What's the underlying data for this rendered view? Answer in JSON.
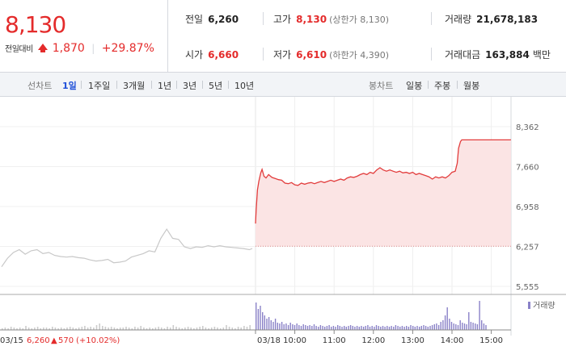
{
  "quote": {
    "price": "8,130",
    "change_label": "전일대비",
    "change_value": "1,870",
    "change_percent": "+29.87%",
    "direction": "up",
    "color_up": "#e42b2b",
    "stats": {
      "prev_close": {
        "label": "전일",
        "value": "6,260"
      },
      "open": {
        "label": "시가",
        "value": "6,660"
      },
      "high": {
        "label": "고가",
        "value": "8,130",
        "sub": "(상한가 8,130)"
      },
      "low": {
        "label": "저가",
        "value": "6,610",
        "sub": "(하한가 4,390)"
      },
      "volume": {
        "label": "거래량",
        "value": "21,678,183"
      },
      "amount": {
        "label": "거래대금",
        "value": "163,884",
        "unit": "백만"
      }
    }
  },
  "period_bar": {
    "line_title": "선차트",
    "line_items": [
      "1일",
      "1주일",
      "3개월",
      "1년",
      "3년",
      "5년",
      "10년"
    ],
    "active_line": "1일",
    "candle_title": "봉차트",
    "candle_items": [
      "일봉",
      "주봉",
      "월봉"
    ]
  },
  "chart_data": {
    "type": "line",
    "y_ticks": [
      "8,362",
      "7,660",
      "6,958",
      "6,257",
      "5,555"
    ],
    "ylim": [
      5555,
      8362
    ],
    "reference_price": 6260,
    "prev_day": {
      "date_label": "03/15",
      "close_label": "6,260",
      "change_label": "570",
      "change_pct_label": "(+10.02%)",
      "color": "#c8c8c8",
      "points": [
        [
          0,
          5900
        ],
        [
          2,
          6050
        ],
        [
          4,
          6150
        ],
        [
          6,
          6200
        ],
        [
          8,
          6120
        ],
        [
          10,
          6180
        ],
        [
          12,
          6200
        ],
        [
          14,
          6130
        ],
        [
          16,
          6150
        ],
        [
          18,
          6100
        ],
        [
          20,
          6080
        ],
        [
          22,
          6070
        ],
        [
          24,
          6080
        ],
        [
          26,
          6060
        ],
        [
          28,
          6050
        ],
        [
          30,
          6020
        ],
        [
          32,
          6000
        ],
        [
          34,
          6010
        ],
        [
          36,
          6030
        ],
        [
          38,
          5970
        ],
        [
          40,
          5980
        ],
        [
          42,
          6000
        ],
        [
          44,
          6070
        ],
        [
          46,
          6100
        ],
        [
          48,
          6130
        ],
        [
          50,
          6180
        ],
        [
          52,
          6160
        ],
        [
          54,
          6400
        ],
        [
          56,
          6560
        ],
        [
          58,
          6400
        ],
        [
          60,
          6380
        ],
        [
          62,
          6250
        ],
        [
          64,
          6220
        ],
        [
          66,
          6250
        ],
        [
          68,
          6240
        ],
        [
          70,
          6270
        ],
        [
          72,
          6250
        ],
        [
          74,
          6270
        ],
        [
          76,
          6250
        ],
        [
          78,
          6240
        ],
        [
          80,
          6230
        ],
        [
          82,
          6220
        ],
        [
          84,
          6200
        ],
        [
          85,
          6220
        ]
      ]
    },
    "today": {
      "date_label": "03/18",
      "color": "#e23c3c",
      "fill": "#fbe4e4",
      "start_time": "09:00",
      "end_time": "15:30",
      "points": [
        [
          "09:00",
          6660
        ],
        [
          "09:01",
          6900
        ],
        [
          "09:03",
          7250
        ],
        [
          "09:05",
          7400
        ],
        [
          "09:08",
          7550
        ],
        [
          "09:10",
          7610
        ],
        [
          "09:13",
          7490
        ],
        [
          "09:16",
          7460
        ],
        [
          "09:20",
          7520
        ],
        [
          "09:25",
          7470
        ],
        [
          "09:30",
          7450
        ],
        [
          "09:35",
          7430
        ],
        [
          "09:40",
          7420
        ],
        [
          "09:45",
          7370
        ],
        [
          "09:50",
          7360
        ],
        [
          "09:55",
          7380
        ],
        [
          "10:00",
          7340
        ],
        [
          "10:05",
          7330
        ],
        [
          "10:10",
          7370
        ],
        [
          "10:15",
          7350
        ],
        [
          "10:20",
          7370
        ],
        [
          "10:25",
          7380
        ],
        [
          "10:30",
          7360
        ],
        [
          "10:35",
          7380
        ],
        [
          "10:40",
          7400
        ],
        [
          "10:45",
          7380
        ],
        [
          "10:50",
          7400
        ],
        [
          "10:55",
          7420
        ],
        [
          "11:00",
          7400
        ],
        [
          "11:05",
          7420
        ],
        [
          "11:10",
          7440
        ],
        [
          "11:15",
          7420
        ],
        [
          "11:20",
          7460
        ],
        [
          "11:25",
          7480
        ],
        [
          "11:30",
          7470
        ],
        [
          "11:35",
          7490
        ],
        [
          "11:40",
          7520
        ],
        [
          "11:45",
          7540
        ],
        [
          "11:50",
          7520
        ],
        [
          "11:55",
          7560
        ],
        [
          "12:00",
          7540
        ],
        [
          "12:05",
          7600
        ],
        [
          "12:10",
          7640
        ],
        [
          "12:15",
          7600
        ],
        [
          "12:20",
          7580
        ],
        [
          "12:25",
          7600
        ],
        [
          "12:30",
          7580
        ],
        [
          "12:35",
          7560
        ],
        [
          "12:40",
          7580
        ],
        [
          "12:45",
          7550
        ],
        [
          "12:50",
          7560
        ],
        [
          "12:55",
          7540
        ],
        [
          "13:00",
          7560
        ],
        [
          "13:05",
          7520
        ],
        [
          "13:10",
          7540
        ],
        [
          "13:15",
          7520
        ],
        [
          "13:20",
          7500
        ],
        [
          "13:25",
          7480
        ],
        [
          "13:30",
          7440
        ],
        [
          "13:35",
          7480
        ],
        [
          "13:40",
          7460
        ],
        [
          "13:45",
          7480
        ],
        [
          "13:50",
          7460
        ],
        [
          "13:55",
          7500
        ],
        [
          "14:00",
          7560
        ],
        [
          "14:05",
          7580
        ],
        [
          "14:08",
          7720
        ],
        [
          "14:10",
          7980
        ],
        [
          "14:13",
          8100
        ],
        [
          "14:15",
          8130
        ],
        [
          "14:30",
          8130
        ],
        [
          "14:45",
          8130
        ],
        [
          "15:00",
          8130
        ],
        [
          "15:15",
          8130
        ],
        [
          "15:30",
          8130
        ]
      ]
    },
    "x_ticks": [
      "10:00",
      "11:00",
      "12:00",
      "13:00",
      "14:00",
      "15:00"
    ],
    "volume": {
      "legend": "거래량",
      "color_prev": "#cccccc",
      "color_today": "#8a82c8",
      "prev_bars": [
        2,
        3,
        2,
        4,
        3,
        2,
        3,
        2,
        5,
        3,
        2,
        3,
        4,
        2,
        3,
        3,
        2,
        4,
        3,
        2,
        3,
        2,
        3,
        4,
        3,
        2,
        3,
        4,
        5,
        3,
        4,
        3,
        6,
        8,
        5,
        4,
        3,
        4,
        3,
        2,
        3,
        3,
        4,
        3,
        2,
        4,
        3,
        5,
        3,
        2,
        3,
        2,
        3,
        4,
        3,
        2,
        4,
        3,
        6,
        4,
        3,
        2,
        3,
        4,
        3,
        2,
        3,
        4,
        5,
        3,
        2,
        3,
        4,
        3,
        2,
        3,
        6,
        4,
        3,
        2,
        4,
        3,
        5,
        4,
        6
      ],
      "today_bars": [
        34,
        26,
        30,
        22,
        18,
        14,
        16,
        12,
        10,
        14,
        9,
        8,
        10,
        7,
        8,
        6,
        9,
        7,
        6,
        8,
        6,
        5,
        7,
        6,
        5,
        6,
        5,
        7,
        5,
        4,
        6,
        5,
        4,
        5,
        6,
        4,
        5,
        4,
        6,
        5,
        4,
        5,
        4,
        5,
        6,
        5,
        4,
        5,
        4,
        5,
        4,
        5,
        6,
        4,
        5,
        4,
        6,
        5,
        4,
        5,
        4,
        5,
        4,
        5,
        4,
        6,
        5,
        4,
        5,
        4,
        5,
        4,
        6,
        5,
        4,
        5,
        4,
        5,
        6,
        5,
        4,
        5,
        6,
        7,
        8,
        6,
        10,
        12,
        18,
        28,
        14,
        10,
        8,
        7,
        6,
        12,
        9,
        8,
        7,
        22,
        10,
        9,
        8,
        7,
        36,
        12,
        8,
        6
      ]
    }
  }
}
